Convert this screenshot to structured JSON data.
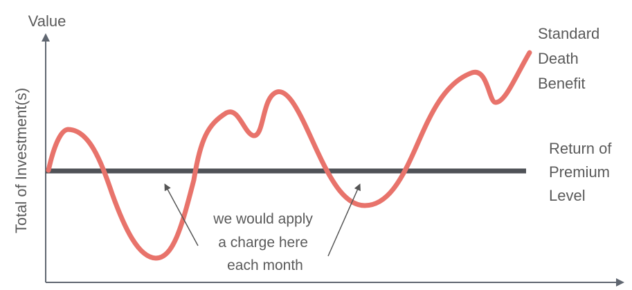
{
  "diagram": {
    "y_axis_top_label": "Value",
    "y_axis_title": "Total of Investment(s)",
    "standard_death_benefit_label": [
      "Standard",
      "Death",
      "Benefit"
    ],
    "return_of_premium_label": [
      "Return of",
      "Premium",
      "Level"
    ],
    "annotation_lines": [
      "we would apply",
      "a charge here",
      "each month"
    ],
    "colors": {
      "value_curve": "#e8736b",
      "premium_level_line": "#4f5257",
      "axis": "#5f6670",
      "text": "#5a5a5a",
      "callout_arrow": "#555555"
    }
  }
}
